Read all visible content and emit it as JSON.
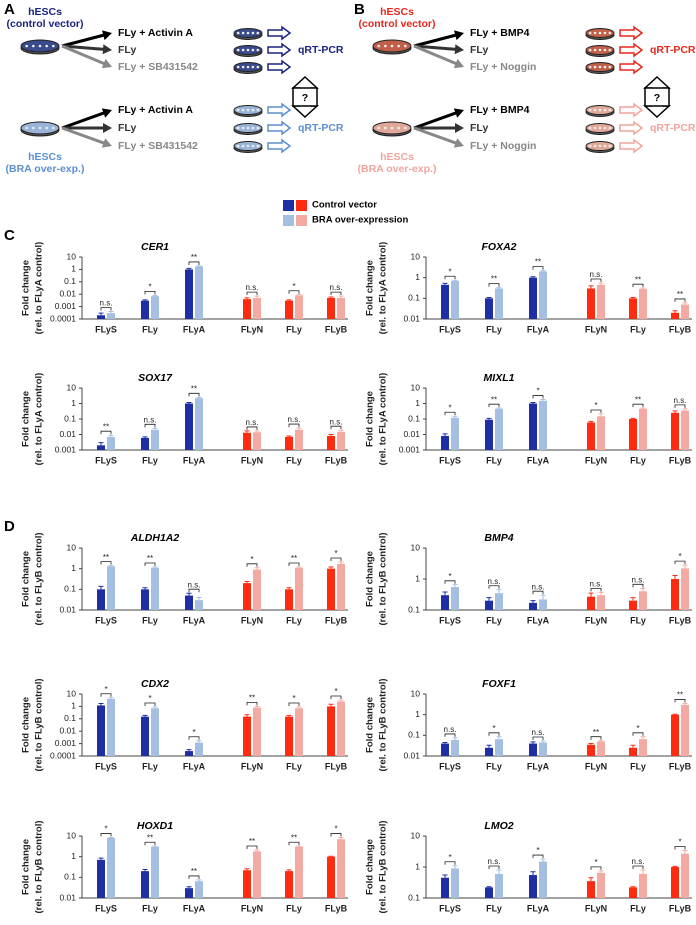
{
  "panels": [
    "A",
    "B",
    "C",
    "D"
  ],
  "schemes": [
    {
      "top_cell": [
        "hESCs",
        "(control vector)"
      ],
      "bottom_cell": [
        "hESCs",
        "(BRA over-exp.)"
      ],
      "top_treatments": [
        "FLy + Activin A",
        "FLy",
        "FLy + SB431542"
      ],
      "bottom_treatments": [
        "FLy + Activin A",
        "FLy",
        "FLy + SB431542"
      ],
      "top_readout": "qRT-PCR",
      "bottom_readout": "qRT-PCR",
      "question": "?"
    },
    {
      "top_cell": [
        "hESCs",
        "(control vector)"
      ],
      "bottom_cell": [
        "hESCs",
        "(BRA over-exp.)"
      ],
      "top_treatments": [
        "FLy + BMP4",
        "FLy",
        "FLy + Noggin"
      ],
      "bottom_treatments": [
        "FLy + BMP4",
        "FLy",
        "FLy + Noggin"
      ],
      "top_readout": "qRT-PCR",
      "bottom_readout": "qRT-PCR",
      "question": "?"
    }
  ],
  "legend": [
    {
      "name": "Control vector",
      "colors": [
        "#1d2fa3",
        "#ff2b10"
      ]
    },
    {
      "name": "BRA over-expression",
      "colors": [
        "#a5bfe3",
        "#f3aaa3"
      ]
    }
  ],
  "chart_data": [
    {
      "type": "bar",
      "title": "CER1",
      "ylabel": "Fold change",
      "ylabel_sub": "(rel. to FLyA control)",
      "log_scale": true,
      "categories": [
        "FLyS",
        "FLy",
        "FLyA",
        "FLyN",
        "FLy",
        "FLyB"
      ],
      "ylim": [
        0.0001,
        10
      ],
      "yticks": [
        0.0001,
        0.001,
        0.01,
        0.1,
        1,
        10
      ],
      "series": [
        {
          "values": [
            0.0002,
            0.003,
            1,
            0.004,
            0.003,
            0.005
          ],
          "errors": [
            0.0001,
            0.0005,
            0.2,
            0.001,
            0.0005,
            0.001
          ],
          "colors": [
            "#1d2fa3",
            "#1d2fa3",
            "#1d2fa3",
            "#ff2b10",
            "#ff2b10",
            "#ff2b10"
          ]
        },
        {
          "values": [
            0.0003,
            0.007,
            1.7,
            0.005,
            0.008,
            0.005
          ],
          "errors": [
            0.0001,
            0.001,
            0.2,
            0.002,
            0.001,
            0.002
          ],
          "colors": [
            "#a5bfe3",
            "#a5bfe3",
            "#a5bfe3",
            "#f3aaa3",
            "#f3aaa3",
            "#f3aaa3"
          ]
        }
      ],
      "significance": [
        "n.s.",
        "*",
        "**",
        "n.s.",
        "*",
        "n.s."
      ]
    },
    {
      "type": "bar",
      "title": "FOXA2",
      "ylabel": "Fold change",
      "ylabel_sub": "(rel. to FLyA control)",
      "log_scale": true,
      "categories": [
        "FLyS",
        "FLy",
        "FLyA",
        "FLyN",
        "FLy",
        "FLyB"
      ],
      "ylim": [
        0.01,
        10
      ],
      "yticks": [
        0.01,
        0.1,
        1,
        10
      ],
      "series": [
        {
          "values": [
            0.45,
            0.1,
            1,
            0.3,
            0.1,
            0.02
          ],
          "errors": [
            0.08,
            0.01,
            0.1,
            0.1,
            0.01,
            0.005
          ],
          "colors": [
            "#1d2fa3",
            "#1d2fa3",
            "#1d2fa3",
            "#ff2b10",
            "#ff2b10",
            "#ff2b10"
          ]
        },
        {
          "values": [
            0.7,
            0.3,
            2,
            0.45,
            0.28,
            0.05
          ],
          "errors": [
            0.05,
            0.03,
            0.2,
            0.1,
            0.03,
            0.01
          ],
          "colors": [
            "#a5bfe3",
            "#a5bfe3",
            "#a5bfe3",
            "#f3aaa3",
            "#f3aaa3",
            "#f3aaa3"
          ]
        }
      ],
      "significance": [
        "*",
        "**",
        "**",
        "n.s.",
        "**",
        "**"
      ]
    },
    {
      "type": "bar",
      "title": "SOX17",
      "ylabel": "Fold change",
      "ylabel_sub": "(rel. to FLyA control)",
      "log_scale": true,
      "categories": [
        "FLyS",
        "FLy",
        "FLyA",
        "FLyN",
        "FLy",
        "FLyB"
      ],
      "ylim": [
        0.001,
        10
      ],
      "yticks": [
        0.001,
        0.01,
        0.1,
        1,
        10
      ],
      "series": [
        {
          "values": [
            0.002,
            0.006,
            1,
            0.013,
            0.007,
            0.008
          ],
          "errors": [
            0.001,
            0.001,
            0.15,
            0.004,
            0.001,
            0.002
          ],
          "colors": [
            "#1d2fa3",
            "#1d2fa3",
            "#1d2fa3",
            "#ff2b10",
            "#ff2b10",
            "#ff2b10"
          ]
        },
        {
          "values": [
            0.007,
            0.02,
            2.2,
            0.014,
            0.02,
            0.015
          ],
          "errors": [
            0.002,
            0.005,
            0.3,
            0.003,
            0.006,
            0.004
          ],
          "colors": [
            "#a5bfe3",
            "#a5bfe3",
            "#a5bfe3",
            "#f3aaa3",
            "#f3aaa3",
            "#f3aaa3"
          ]
        }
      ],
      "significance": [
        "**",
        "n.s.",
        "**",
        "n.s.",
        "n.s.",
        "n.s."
      ]
    },
    {
      "type": "bar",
      "title": "MIXL1",
      "ylabel": "Fold change",
      "ylabel_sub": "(rel. to FLyA control)",
      "log_scale": true,
      "categories": [
        "FLyS",
        "FLy",
        "FLyA",
        "FLyN",
        "FLy",
        "FLyB"
      ],
      "ylim": [
        0.001,
        10
      ],
      "yticks": [
        0.001,
        0.01,
        0.1,
        1,
        10
      ],
      "series": [
        {
          "values": [
            0.008,
            0.09,
            1,
            0.06,
            0.1,
            0.25
          ],
          "errors": [
            0.003,
            0.02,
            0.15,
            0.01,
            0.01,
            0.08
          ],
          "colors": [
            "#1d2fa3",
            "#1d2fa3",
            "#1d2fa3",
            "#ff2b10",
            "#ff2b10",
            "#ff2b10"
          ]
        },
        {
          "values": [
            0.12,
            0.45,
            1.5,
            0.15,
            0.45,
            0.35
          ],
          "errors": [
            0.03,
            0.05,
            0.3,
            0.06,
            0.05,
            0.1
          ],
          "colors": [
            "#a5bfe3",
            "#a5bfe3",
            "#a5bfe3",
            "#f3aaa3",
            "#f3aaa3",
            "#f3aaa3"
          ]
        }
      ],
      "significance": [
        "*",
        "**",
        "*",
        "*",
        "**",
        "n.s."
      ]
    },
    {
      "type": "bar",
      "title": "ALDH1A2",
      "ylabel": "Fold change",
      "ylabel_sub": "(rel. to FLyB control)",
      "log_scale": true,
      "categories": [
        "FLyS",
        "FLy",
        "FLyA",
        "FLyN",
        "FLy",
        "FLyB"
      ],
      "ylim": [
        0.01,
        10
      ],
      "yticks": [
        0.01,
        0.1,
        1,
        10
      ],
      "series": [
        {
          "values": [
            0.1,
            0.1,
            0.05,
            0.2,
            0.1,
            1
          ],
          "errors": [
            0.04,
            0.02,
            0.015,
            0.04,
            0.02,
            0.2
          ],
          "colors": [
            "#1d2fa3",
            "#1d2fa3",
            "#1d2fa3",
            "#ff2b10",
            "#ff2b10",
            "#ff2b10"
          ]
        },
        {
          "values": [
            1.3,
            1.1,
            0.03,
            0.9,
            1.1,
            1.7
          ],
          "errors": [
            0.1,
            0.1,
            0.01,
            0.2,
            0.1,
            0.4
          ],
          "colors": [
            "#a5bfe3",
            "#a5bfe3",
            "#a5bfe3",
            "#f3aaa3",
            "#f3aaa3",
            "#f3aaa3"
          ]
        }
      ],
      "significance": [
        "**",
        "**",
        "n.s.",
        "*",
        "**",
        "*"
      ]
    },
    {
      "type": "bar",
      "title": "BMP4",
      "ylabel": "Fold change",
      "ylabel_sub": "(rel. to FLyB control)",
      "log_scale": true,
      "categories": [
        "FLyS",
        "FLy",
        "FLyA",
        "FLyN",
        "FLy",
        "FLyB"
      ],
      "ylim": [
        0.1,
        10
      ],
      "yticks": [
        0.1,
        1,
        10
      ],
      "series": [
        {
          "values": [
            0.3,
            0.2,
            0.17,
            0.27,
            0.2,
            1
          ],
          "errors": [
            0.08,
            0.05,
            0.03,
            0.08,
            0.05,
            0.3
          ],
          "colors": [
            "#1d2fa3",
            "#1d2fa3",
            "#1d2fa3",
            "#ff2b10",
            "#ff2b10",
            "#ff2b10"
          ]
        },
        {
          "values": [
            0.55,
            0.35,
            0.22,
            0.3,
            0.4,
            2.2
          ],
          "errors": [
            0.1,
            0.1,
            0.08,
            0.07,
            0.1,
            0.6
          ],
          "colors": [
            "#a5bfe3",
            "#a5bfe3",
            "#a5bfe3",
            "#f3aaa3",
            "#f3aaa3",
            "#f3aaa3"
          ]
        }
      ],
      "significance": [
        "*",
        "n.s.",
        "n.s.",
        "n.s.",
        "n.s.",
        "*"
      ]
    },
    {
      "type": "bar",
      "title": "CDX2",
      "ylabel": "Fold change",
      "ylabel_sub": "(rel. to FLyB control)",
      "log_scale": true,
      "categories": [
        "FLyS",
        "FLy",
        "FLyA",
        "FLyN",
        "FLy",
        "FLyB"
      ],
      "ylim": [
        0.0001,
        10
      ],
      "yticks": [
        0.0001,
        0.001,
        0.01,
        0.1,
        1,
        10
      ],
      "series": [
        {
          "values": [
            1.2,
            0.15,
            0.00025,
            0.15,
            0.15,
            1
          ],
          "errors": [
            0.5,
            0.04,
            8e-05,
            0.06,
            0.04,
            0.5
          ],
          "colors": [
            "#1d2fa3",
            "#1d2fa3",
            "#1d2fa3",
            "#ff2b10",
            "#ff2b10",
            "#ff2b10"
          ]
        },
        {
          "values": [
            4,
            0.7,
            0.0012,
            0.8,
            0.7,
            2.5
          ],
          "errors": [
            1,
            0.2,
            0.0005,
            0.2,
            0.2,
            0.8
          ],
          "colors": [
            "#a5bfe3",
            "#a5bfe3",
            "#a5bfe3",
            "#f3aaa3",
            "#f3aaa3",
            "#f3aaa3"
          ]
        }
      ],
      "significance": [
        "*",
        "*",
        "*",
        "**",
        "*",
        "*"
      ]
    },
    {
      "type": "bar",
      "title": "FOXF1",
      "ylabel": "Fold change",
      "ylabel_sub": "(rel. to FLyB control)",
      "log_scale": true,
      "categories": [
        "FLyS",
        "FLy",
        "FLyA",
        "FLyN",
        "FLy",
        "FLyB"
      ],
      "ylim": [
        0.01,
        10
      ],
      "yticks": [
        0.01,
        0.1,
        1,
        10
      ],
      "series": [
        {
          "values": [
            0.04,
            0.025,
            0.04,
            0.035,
            0.025,
            1
          ],
          "errors": [
            0.005,
            0.008,
            0.008,
            0.005,
            0.008,
            0.05
          ],
          "colors": [
            "#1d2fa3",
            "#1d2fa3",
            "#1d2fa3",
            "#ff2b10",
            "#ff2b10",
            "#ff2b10"
          ]
        },
        {
          "values": [
            0.06,
            0.065,
            0.045,
            0.05,
            0.065,
            3
          ],
          "errors": [
            0.015,
            0.02,
            0.008,
            0.005,
            0.02,
            0.5
          ],
          "colors": [
            "#a5bfe3",
            "#a5bfe3",
            "#a5bfe3",
            "#f3aaa3",
            "#f3aaa3",
            "#f3aaa3"
          ]
        }
      ],
      "significance": [
        "n.s.",
        "*",
        "n.s.",
        "**",
        "*",
        "**"
      ]
    },
    {
      "type": "bar",
      "title": "HOXD1",
      "ylabel": "Fold change",
      "ylabel_sub": "(rel. to FLyB control)",
      "log_scale": true,
      "categories": [
        "FLyS",
        "FLy",
        "FLyA",
        "FLyN",
        "FLy",
        "FLyB"
      ],
      "ylim": [
        0.01,
        10
      ],
      "yticks": [
        0.01,
        0.1,
        1,
        10
      ],
      "series": [
        {
          "values": [
            0.7,
            0.2,
            0.03,
            0.22,
            0.2,
            1
          ],
          "errors": [
            0.15,
            0.04,
            0.005,
            0.04,
            0.03,
            0.05
          ],
          "colors": [
            "#1d2fa3",
            "#1d2fa3",
            "#1d2fa3",
            "#ff2b10",
            "#ff2b10",
            "#ff2b10"
          ]
        },
        {
          "values": [
            8,
            3,
            0.065,
            1.8,
            3,
            7
          ],
          "errors": [
            0.5,
            0.2,
            0.01,
            0.3,
            0.2,
            1.5
          ],
          "colors": [
            "#a5bfe3",
            "#a5bfe3",
            "#a5bfe3",
            "#f3aaa3",
            "#f3aaa3",
            "#f3aaa3"
          ]
        }
      ],
      "significance": [
        "*",
        "**",
        "**",
        "**",
        "**",
        "*"
      ]
    },
    {
      "type": "bar",
      "title": "LMO2",
      "ylabel": "Fold change",
      "ylabel_sub": "(rel. to FLyB control)",
      "log_scale": true,
      "categories": [
        "FLyS",
        "FLy",
        "FLyA",
        "FLyN",
        "FLy",
        "FLyB"
      ],
      "ylim": [
        0.1,
        10
      ],
      "yticks": [
        0.1,
        1,
        10
      ],
      "series": [
        {
          "values": [
            0.45,
            0.22,
            0.55,
            0.35,
            0.22,
            1
          ],
          "errors": [
            0.1,
            0.01,
            0.15,
            0.1,
            0.01,
            0.05
          ],
          "colors": [
            "#1d2fa3",
            "#1d2fa3",
            "#1d2fa3",
            "#ff2b10",
            "#ff2b10",
            "#ff2b10"
          ]
        },
        {
          "values": [
            0.9,
            0.6,
            1.5,
            0.65,
            0.6,
            2.7
          ],
          "errors": [
            0.2,
            0.2,
            0.3,
            0.1,
            0.2,
            0.7
          ],
          "colors": [
            "#a5bfe3",
            "#a5bfe3",
            "#a5bfe3",
            "#f3aaa3",
            "#f3aaa3",
            "#f3aaa3"
          ]
        }
      ],
      "significance": [
        "*",
        "n.s.",
        "*",
        "*",
        "n.s.",
        "*"
      ]
    }
  ]
}
